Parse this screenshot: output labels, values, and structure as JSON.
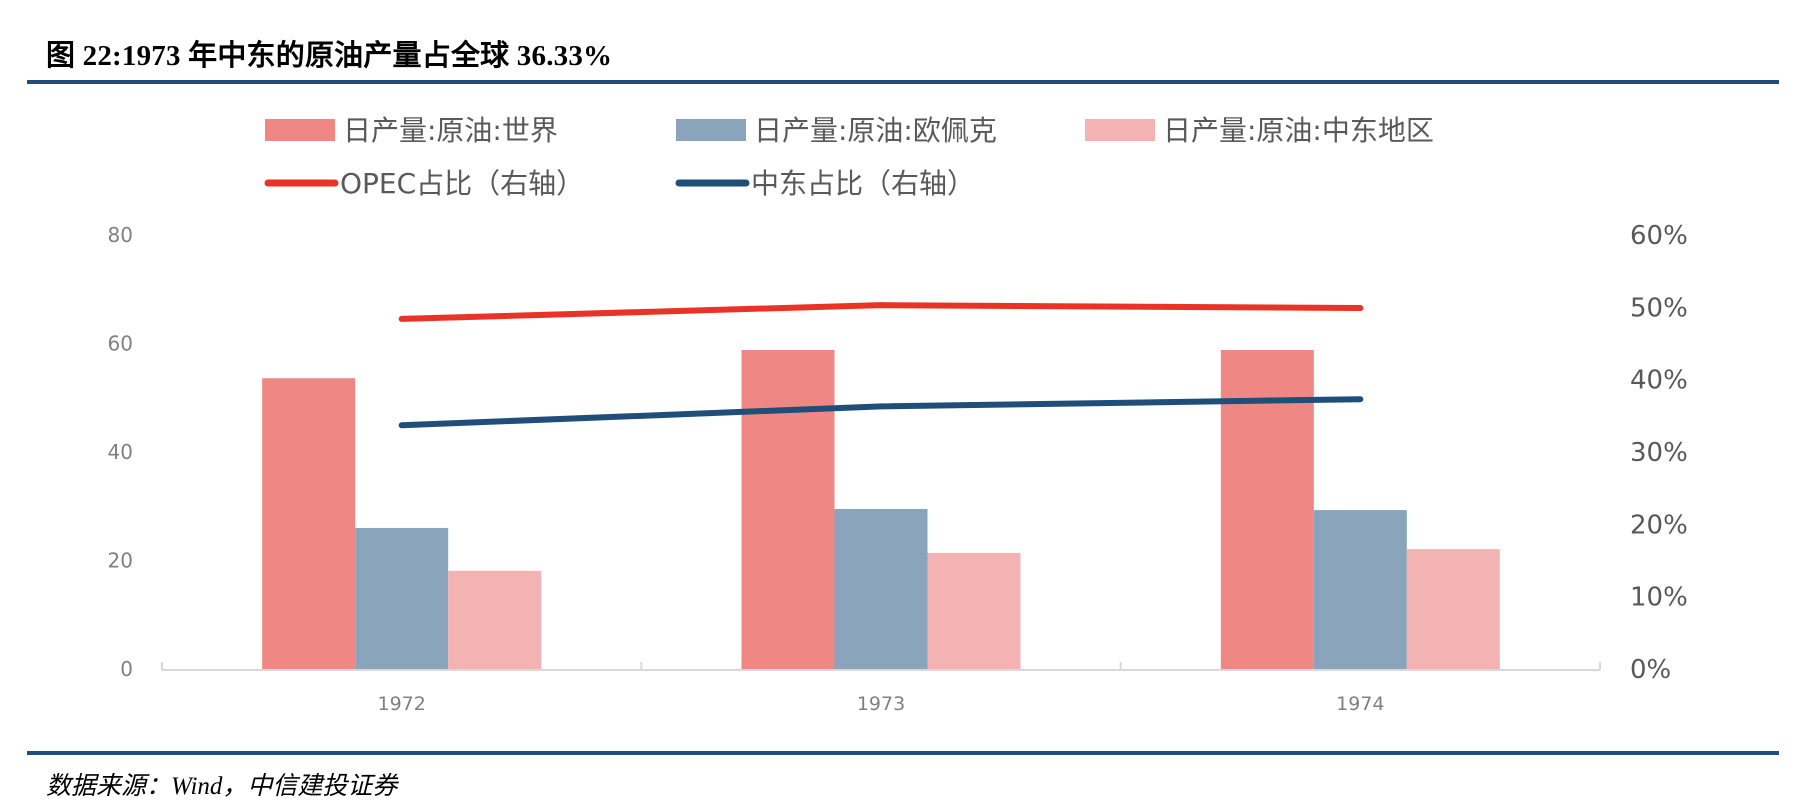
{
  "title": "图 22:1973 年中东的原油产量占全球 36.33%",
  "source": "数据来源：Wind，中信建投证券",
  "colors": {
    "world": "#ef8884",
    "opec": "#8aa5bb",
    "mideast": "#f4b3b3",
    "opec_share": "#e83326",
    "mideast_share": "#1f4e79",
    "rule": "#1f4e79",
    "axis": "#d9d9d9"
  },
  "legend": [
    {
      "label": "日产量:原油:世界",
      "type": "bar",
      "color": "#ef8884"
    },
    {
      "label": "日产量:原油:欧佩克",
      "type": "bar",
      "color": "#8aa5bb"
    },
    {
      "label": "日产量:原油:中东地区",
      "type": "bar",
      "color": "#f4b3b3"
    },
    {
      "label": "OPEC占比（右轴）",
      "type": "line",
      "color": "#e83326"
    },
    {
      "label": "中东占比（右轴）",
      "type": "line",
      "color": "#1f4e79"
    }
  ],
  "axes": {
    "left_ticks": [
      "0",
      "20",
      "40",
      "60",
      "80"
    ],
    "right_ticks": [
      "0%",
      "10%",
      "20%",
      "30%",
      "40%",
      "50%",
      "60%"
    ],
    "x_ticks": [
      "1972",
      "1973",
      "1974"
    ]
  },
  "chart_data": {
    "type": "bar",
    "title": "图 22:1973 年中东的原油产量占全球 36.33%",
    "categories": [
      "1972",
      "1973",
      "1974"
    ],
    "xlabel": "",
    "ylabel": "",
    "ylim": [
      0,
      80
    ],
    "y2lim": [
      0,
      0.6
    ],
    "grid": false,
    "legend_position": "top",
    "series": [
      {
        "name": "日产量:原油:世界",
        "type": "bar",
        "axis": "left",
        "values": [
          53.6,
          58.8,
          58.8
        ]
      },
      {
        "name": "日产量:原油:欧佩克",
        "type": "bar",
        "axis": "left",
        "values": [
          26.0,
          29.5,
          29.3
        ]
      },
      {
        "name": "日产量:原油:中东地区",
        "type": "bar",
        "axis": "left",
        "values": [
          18.1,
          21.4,
          22.1
        ]
      },
      {
        "name": "OPEC占比（右轴）",
        "type": "line",
        "axis": "right",
        "values": [
          0.484,
          0.503,
          0.499
        ]
      },
      {
        "name": "中东占比（右轴）",
        "type": "line",
        "axis": "right",
        "values": [
          0.337,
          0.363,
          0.373
        ]
      }
    ]
  }
}
